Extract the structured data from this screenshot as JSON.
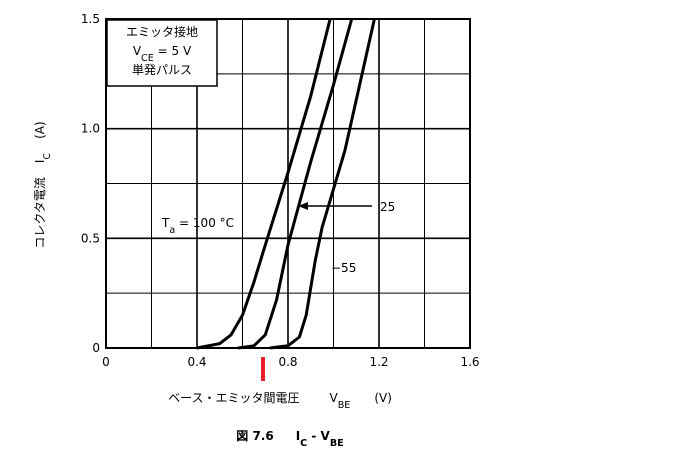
{
  "chart_data": {
    "type": "line",
    "condition_box": [
      "エミッタ接地",
      {
        "symbol": "V",
        "sub": "CE",
        "rest": " = 5 V"
      },
      "単発パルス"
    ],
    "x_label": {
      "name": "ベース・エミッタ間電圧",
      "symbol": "V",
      "sub": "BE",
      "unit": "(V)"
    },
    "y_label": {
      "name": "コレクタ電流",
      "symbol": "I",
      "sub": "C",
      "unit": "(A)"
    },
    "caption": {
      "prefix": "図 7.6",
      "symbol": "I",
      "sub": "C",
      "mid": " - V",
      "sub2": "BE"
    },
    "xlim": [
      0,
      1.6
    ],
    "ylim": [
      0,
      1.5
    ],
    "xticks": [
      0,
      0.4,
      0.8,
      1.2,
      1.6
    ],
    "yticks": [
      0,
      0.5,
      {
        "value": 1,
        "label": "1.0"
      },
      1.5
    ],
    "x_minor_grid": [
      0.2,
      0.6,
      1.0,
      1.4
    ],
    "y_minor_grid": [
      0.25,
      0.75,
      1.25
    ],
    "grid": true,
    "series": [
      {
        "name": {
          "symbol": "T",
          "sub": "a",
          "rest": " = 100 °C"
        },
        "color": "#000000",
        "x": [
          0.4,
          0.5,
          0.55,
          0.6,
          0.65,
          0.7,
          0.8,
          0.9,
          0.985
        ],
        "values": [
          0,
          0.02,
          0.06,
          0.15,
          0.3,
          0.47,
          0.8,
          1.15,
          1.5
        ]
      },
      {
        "name": "25",
        "color": "#000000",
        "x": [
          0.58,
          0.65,
          0.7,
          0.75,
          0.8,
          0.9,
          1.0,
          1.08
        ],
        "values": [
          0,
          0.01,
          0.06,
          0.22,
          0.47,
          0.85,
          1.2,
          1.5
        ]
      },
      {
        "name": "−55",
        "color": "#000000",
        "x": [
          0.72,
          0.8,
          0.85,
          0.88,
          0.92,
          0.95,
          1.05,
          1.18
        ],
        "values": [
          0,
          0.01,
          0.05,
          0.15,
          0.4,
          0.55,
          0.9,
          1.5
        ]
      }
    ],
    "marker": {
      "x": 0.69,
      "color": "#e8202a"
    }
  }
}
